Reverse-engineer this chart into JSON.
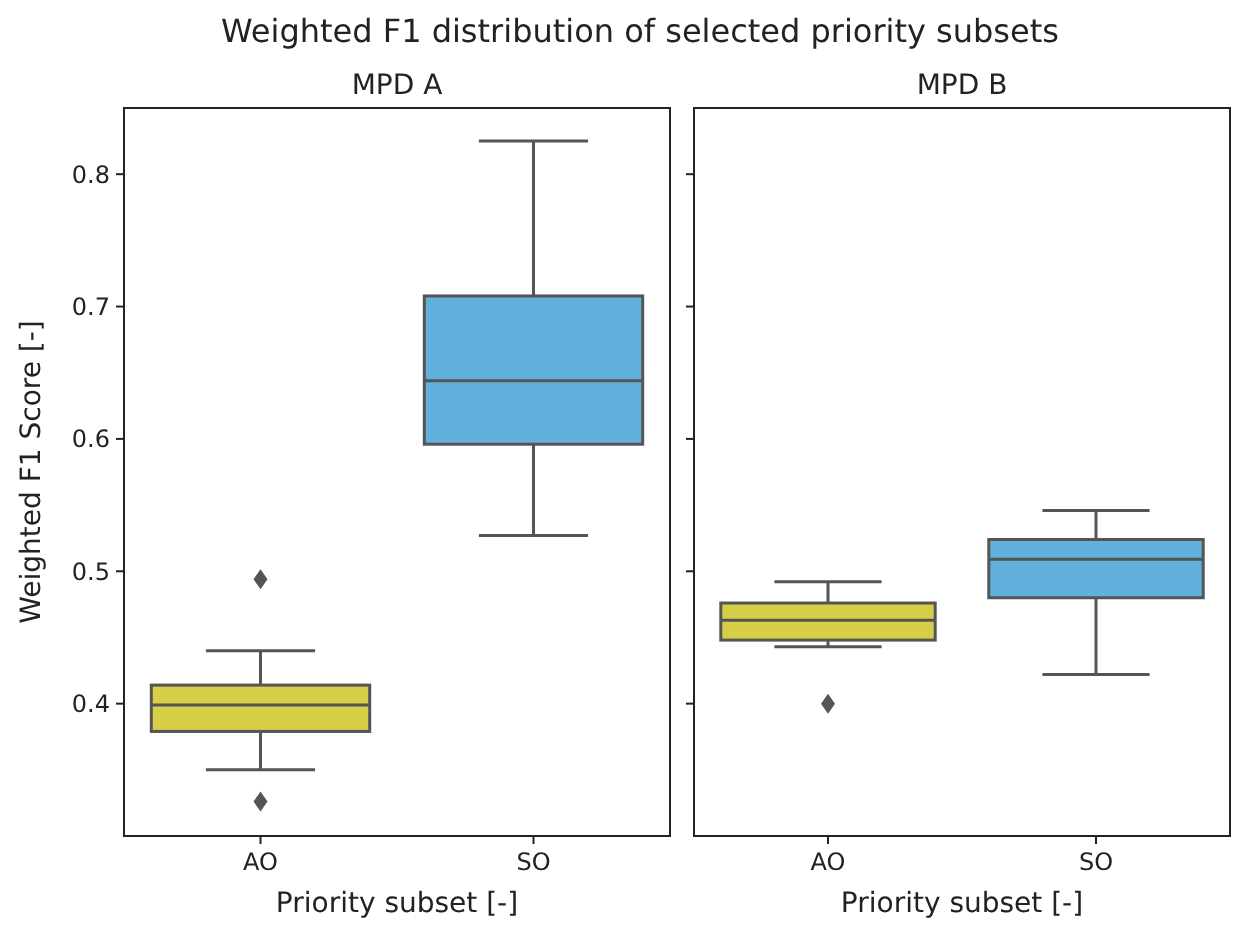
{
  "chart_data": [
    {
      "type": "box",
      "title": "Weighted F1 distribution of selected priority subsets",
      "subtitle": "MPD A",
      "xlabel": "Priority subset [-]",
      "ylabel": "Weighted F1 Score [-]",
      "categories": [
        "AO",
        "SO"
      ],
      "colors": [
        "#d6cf47",
        "#62b0dc"
      ],
      "boxes": [
        {
          "low": 0.35,
          "q1": 0.379,
          "median": 0.399,
          "q3": 0.414,
          "high": 0.44,
          "outliers": [
            0.494,
            0.326
          ]
        },
        {
          "low": 0.527,
          "q1": 0.596,
          "median": 0.644,
          "q3": 0.708,
          "high": 0.825
        }
      ],
      "ylim": [
        0.3,
        0.85
      ],
      "yticks": [
        0.4,
        0.5,
        0.6,
        0.7,
        0.8
      ],
      "grid": false
    },
    {
      "type": "box",
      "subtitle": "MPD B",
      "xlabel": "Priority subset [-]",
      "categories": [
        "AO",
        "SO"
      ],
      "colors": [
        "#d6cf47",
        "#62b0dc"
      ],
      "boxes": [
        {
          "low": 0.443,
          "q1": 0.448,
          "median": 0.463,
          "q3": 0.476,
          "high": 0.492,
          "outliers": [
            0.4
          ]
        },
        {
          "low": 0.422,
          "q1": 0.48,
          "median": 0.509,
          "q3": 0.524,
          "high": 0.546
        }
      ],
      "ylim": [
        0.3,
        0.85
      ],
      "yticks": [
        0.4,
        0.5,
        0.6,
        0.7,
        0.8
      ],
      "grid": false,
      "tick_labels": "x"
    }
  ]
}
